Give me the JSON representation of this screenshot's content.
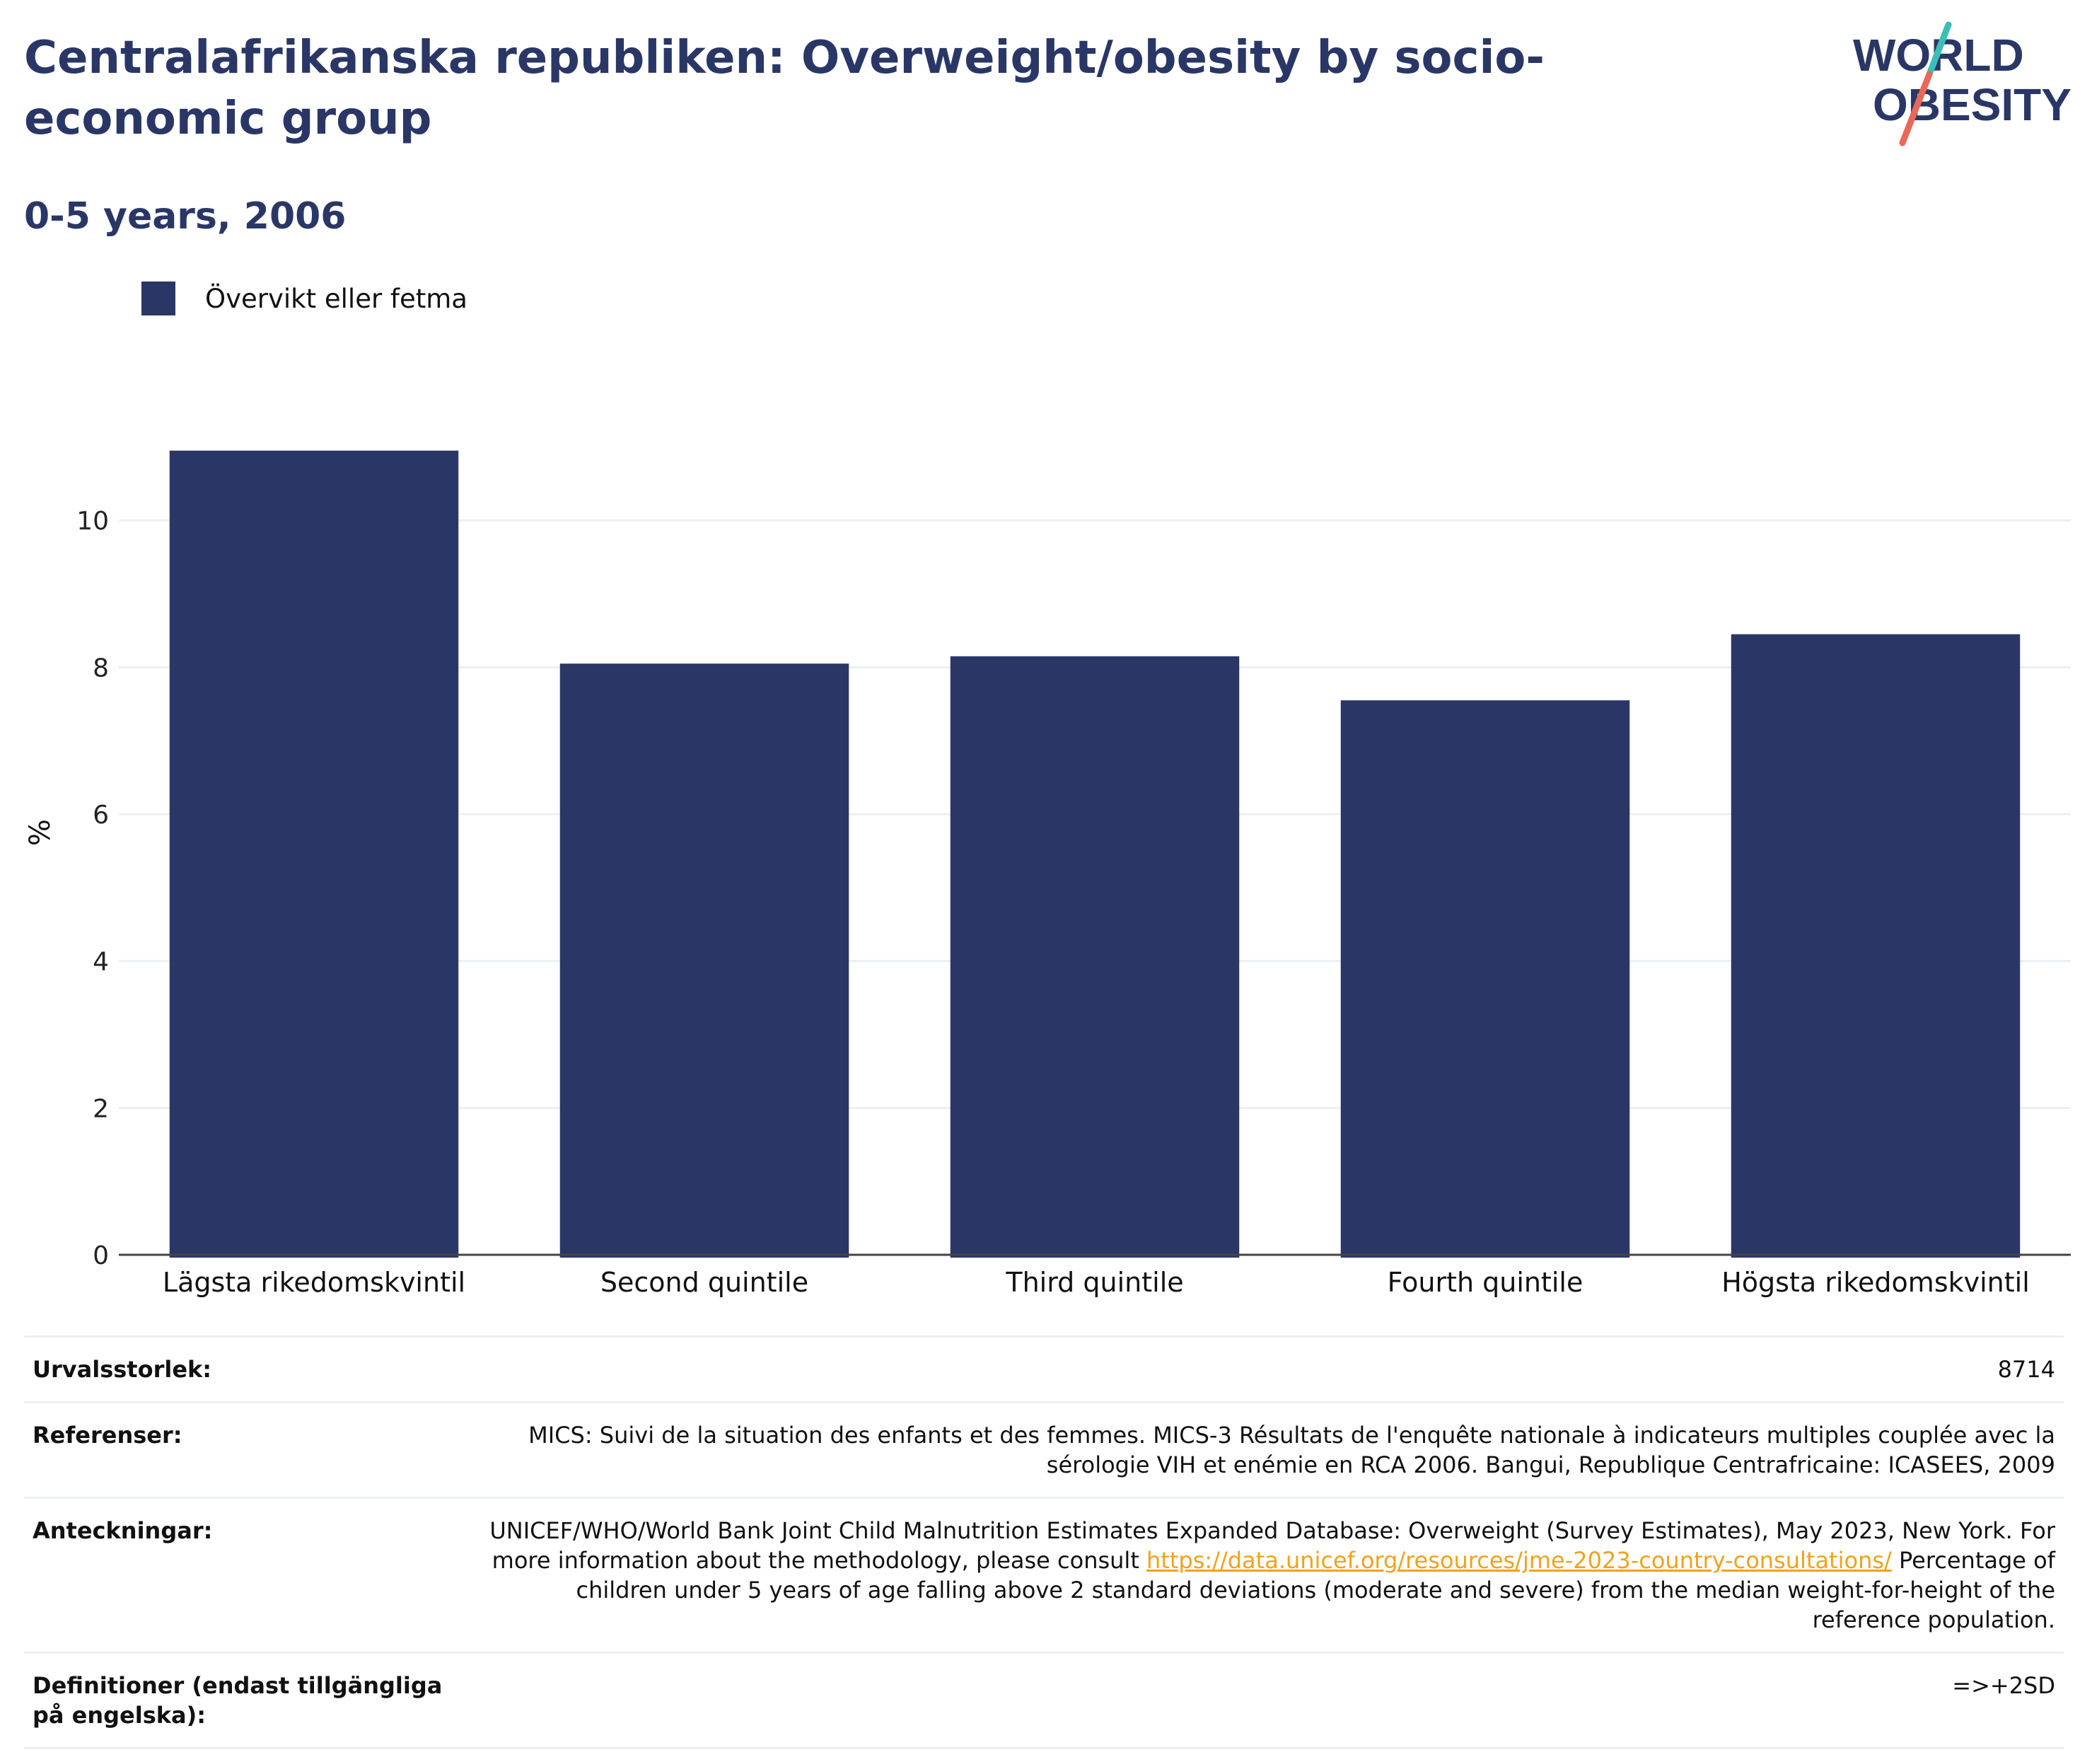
{
  "title": "Centralafrikanska republiken: Overweight/obesity by socio-economic group",
  "subtitle": "0-5 years, 2006",
  "logo": {
    "line1": "WORLD",
    "line2": "OBESITY"
  },
  "colors": {
    "bar": "#2a3766",
    "title": "#2a3766",
    "grid": "#eceff3",
    "link": "#f0a31a",
    "logo_teal": "#3bbfb8",
    "logo_coral": "#e8685a"
  },
  "chart_data": {
    "type": "bar",
    "categories": [
      "Lägsta rikedomskvintil",
      "Second quintile",
      "Third quintile",
      "Fourth quintile",
      "Högsta rikedomskvintil"
    ],
    "series": [
      {
        "name": "Övervikt eller fetma",
        "values": [
          10.95,
          8.05,
          8.15,
          7.55,
          8.45
        ]
      }
    ],
    "ylabel": "%",
    "ylim": [
      0,
      11.5
    ],
    "yticks": [
      0,
      2,
      4,
      6,
      8,
      10
    ],
    "grid": true,
    "legend": "top-left"
  },
  "meta": [
    {
      "key": "Urvalsstorlek:",
      "value": "8714"
    },
    {
      "key": "Referenser:",
      "value": "MICS: Suivi de la situation des enfants et des femmes. MICS-3 Résultats de l'enquête nationale à indicateurs multiples couplée avec la sérologie VIH et enémie en RCA 2006. Bangui, Republique Centrafricaine: ICASEES, 2009"
    },
    {
      "key": "Anteckningar:",
      "value_before": "UNICEF/WHO/World Bank Joint Child Malnutrition Estimates Expanded Database: Overweight (Survey Estimates), May 2023, New York. For more information about the methodology, please consult ",
      "link": "https://data.unicef.org/resources/jme-2023-country-consultations/",
      "value_after": " Percentage of children under 5 years of age falling above 2 standard deviations (moderate and severe) from the median weight-for-height of the reference population."
    },
    {
      "key": "Definitioner (endast tillgängliga på engelska):",
      "value": "=>+2SD"
    }
  ]
}
